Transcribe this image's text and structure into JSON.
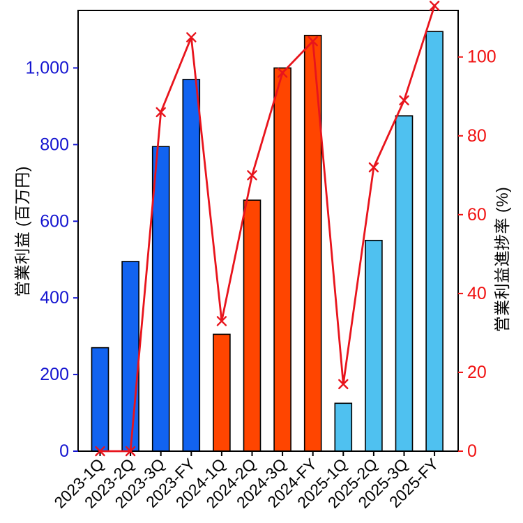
{
  "chart_data": {
    "type": "combo_bar_line",
    "title": "",
    "categories": [
      "2023-1Q",
      "2023-2Q",
      "2023-3Q",
      "2023-FY",
      "2024-1Q",
      "2024-2Q",
      "2024-3Q",
      "2024-FY",
      "2025-1Q",
      "2025-2Q",
      "2025-3Q",
      "2025-FY"
    ],
    "series": [
      {
        "name": "営業利益",
        "type": "bar",
        "axis": "left",
        "values": [
          270,
          495,
          795,
          970,
          305,
          655,
          1000,
          1085,
          125,
          550,
          875,
          1095
        ],
        "bar_colors": [
          "#1263f0",
          "#1263f0",
          "#1263f0",
          "#1263f0",
          "#ff4500",
          "#ff4500",
          "#ff4500",
          "#ff4500",
          "#4fc1f0",
          "#4fc1f0",
          "#4fc1f0",
          "#4fc1f0"
        ],
        "edge_color": "#000000"
      },
      {
        "name": "営業利益進捗率",
        "type": "line",
        "axis": "right",
        "values": [
          0,
          0,
          86,
          105,
          33,
          70,
          96,
          104,
          17,
          72,
          89,
          113
        ],
        "color": "#e8141c",
        "marker": "x"
      }
    ],
    "ylabel_left": "営業利益 (百万円)",
    "ylabel_right": "営業利益進捗率 (%)",
    "axis_left": {
      "min": 0,
      "max": 1150,
      "ticks": [
        0,
        200,
        400,
        600,
        800,
        1000
      ],
      "tick_labels": [
        "0",
        "200",
        "400",
        "600",
        "800",
        "1,000"
      ],
      "color": "#1515d0"
    },
    "axis_right": {
      "min": 0,
      "max": 111.8,
      "ticks": [
        0,
        20,
        40,
        60,
        80,
        100
      ],
      "tick_labels": [
        "0",
        "20",
        "40",
        "60",
        "80",
        "100"
      ],
      "color": "#f01212"
    },
    "x_tick_color": "#000000",
    "x_label_rotation_deg": 45,
    "grid": false,
    "legend": "none",
    "background": "#ffffff",
    "frame_color": "#000000"
  }
}
